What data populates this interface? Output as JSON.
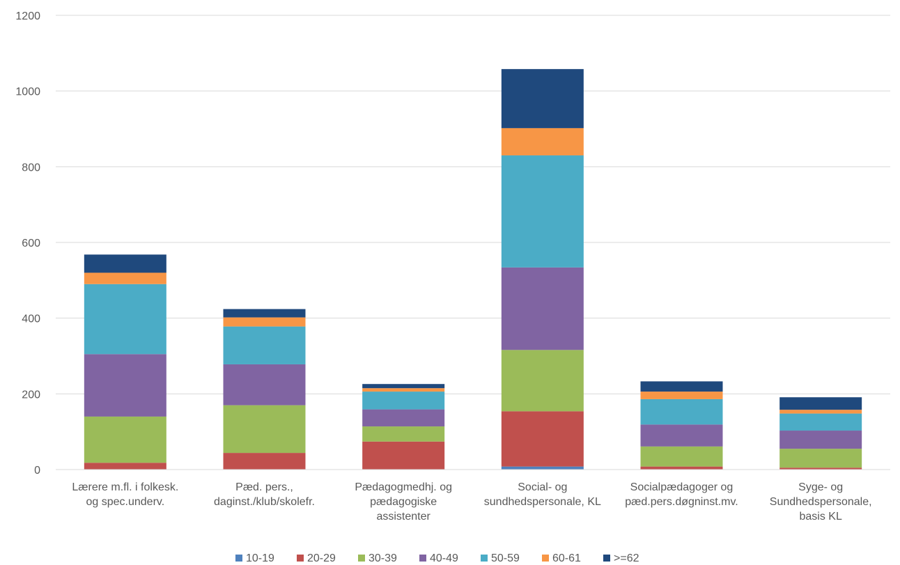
{
  "chart_data": {
    "type": "bar",
    "stacked": true,
    "title": "",
    "xlabel": "",
    "ylabel": "",
    "ylim": [
      0,
      1200
    ],
    "yticks": [
      0,
      200,
      400,
      600,
      800,
      1000,
      1200
    ],
    "grid": true,
    "legend_position": "bottom",
    "categories": [
      [
        "Lærere m.fl. i folkesk.",
        "og spec.underv."
      ],
      [
        "Pæd. pers.,",
        "daginst./klub/skolefr."
      ],
      [
        "Pædagogmedhj. og",
        "pædagogiske",
        "assistenter"
      ],
      [
        "Social- og",
        "sundhedspersonale, KL"
      ],
      [
        "Socialpædagoger og",
        "pæd.pers.døgninst.mv."
      ],
      [
        "Syge- og",
        "Sundhedspersonale,",
        "basis KL"
      ]
    ],
    "series": [
      {
        "name": "10-19",
        "color": "#4f81bd",
        "values": [
          0,
          0,
          0,
          8,
          0,
          0
        ]
      },
      {
        "name": "20-29",
        "color": "#c0504d",
        "values": [
          18,
          44,
          74,
          146,
          8,
          5
        ]
      },
      {
        "name": "30-39",
        "color": "#9bbb59",
        "values": [
          122,
          126,
          40,
          162,
          53,
          50
        ]
      },
      {
        "name": "40-49",
        "color": "#8064a2",
        "values": [
          165,
          108,
          45,
          218,
          58,
          48
        ]
      },
      {
        "name": "50-59",
        "color": "#4bacc6",
        "values": [
          185,
          100,
          47,
          296,
          67,
          45
        ]
      },
      {
        "name": "60-61",
        "color": "#f79646",
        "values": [
          30,
          24,
          9,
          72,
          20,
          10
        ]
      },
      {
        "name": ">=62",
        "color": "#1f497d",
        "values": [
          48,
          22,
          11,
          156,
          27,
          33
        ]
      }
    ]
  }
}
